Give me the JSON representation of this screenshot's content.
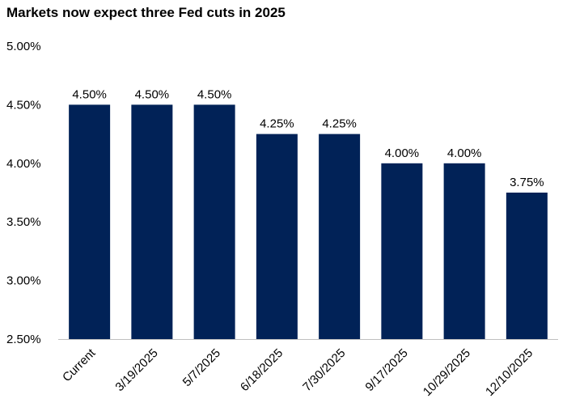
{
  "chart_data": {
    "type": "bar",
    "title": "Markets  now expect three Fed cuts in 2025",
    "categories": [
      "Current",
      "3/19/2025",
      "5/7/2025",
      "6/18/2025",
      "7/30/2025",
      "9/17/2025",
      "10/29/2025",
      "12/10/2025"
    ],
    "values": [
      4.5,
      4.5,
      4.5,
      4.25,
      4.25,
      4.0,
      4.0,
      3.75
    ],
    "data_labels": [
      "4.50%",
      "4.50%",
      "4.50%",
      "4.25%",
      "4.25%",
      "4.00%",
      "4.00%",
      "3.75%"
    ],
    "ylim": [
      2.5,
      5.0
    ],
    "yticks": [
      2.5,
      3.0,
      3.5,
      4.0,
      4.5,
      5.0
    ],
    "ytick_labels": [
      "2.50%",
      "3.00%",
      "3.50%",
      "4.00%",
      "4.50%",
      "5.00%"
    ],
    "xlabel": "",
    "ylabel": "",
    "grid": false,
    "legend": "none",
    "bar_color": "#012257"
  }
}
